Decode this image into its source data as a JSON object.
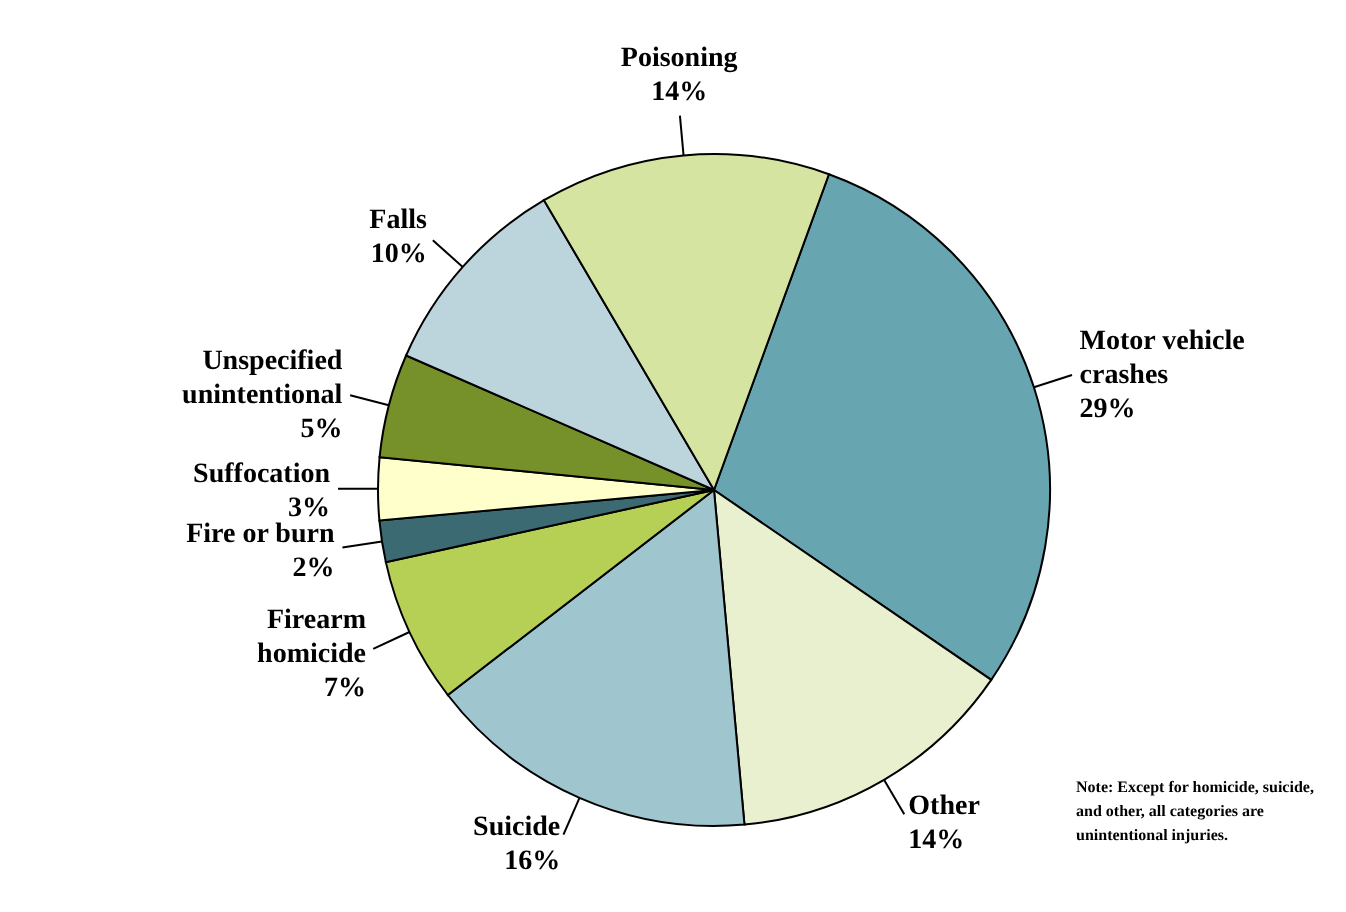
{
  "chart_data": {
    "type": "pie",
    "categories": [
      "Motor vehicle crashes",
      "Other",
      "Suicide",
      "Firearm homicide",
      "Fire or burn",
      "Suffocation",
      "Unspecified unintentional",
      "Falls",
      "Poisoning"
    ],
    "values": [
      29,
      14,
      16,
      7,
      2,
      3,
      5,
      10,
      14
    ],
    "value_labels": [
      "29%",
      "14%",
      "16%",
      "7%",
      "2%",
      "3%",
      "5%",
      "10%",
      "14%"
    ],
    "colors": [
      "#67a5b1",
      "#e8f0cf",
      "#9fc5cf",
      "#b5d055",
      "#3b6a72",
      "#ffffcc",
      "#76902a",
      "#bcd4dc",
      "#d5e4a0"
    ],
    "annotations": [
      "Note: Except for homicide, suicide, and other, all categories are unintentional injuries."
    ]
  }
}
